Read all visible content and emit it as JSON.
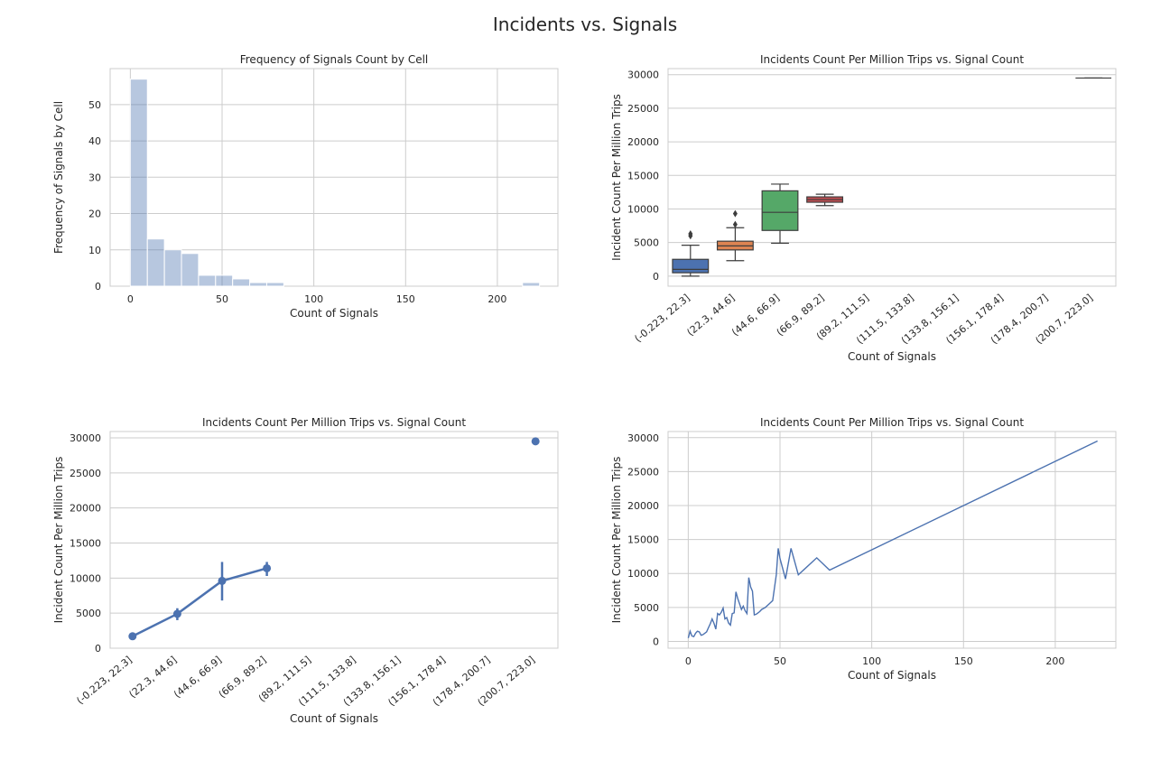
{
  "figure": {
    "title": "Incidents vs. Signals"
  },
  "chart_data": [
    {
      "type": "histogram",
      "title": "Frequency of Signals Count by Cell",
      "xlabel": "Count of Signals",
      "ylabel": "Frequency of Signals by Cell",
      "xlim": [
        -11,
        233
      ],
      "ylim": [
        0,
        59.9
      ],
      "xticks": [
        0,
        50,
        100,
        150,
        200
      ],
      "yticks": [
        0,
        10,
        20,
        30,
        40,
        50
      ],
      "bin_edges": [
        0,
        9.29,
        18.58,
        27.88,
        37.17,
        46.46,
        55.75,
        65.04,
        74.33,
        83.63,
        92.92,
        102.21,
        111.5,
        120.79,
        130.08,
        139.38,
        148.67,
        157.96,
        167.25,
        176.54,
        185.83,
        195.13,
        204.42,
        213.71,
        223
      ],
      "counts": [
        57,
        13,
        10,
        9,
        3,
        3,
        2,
        1,
        1,
        0,
        0,
        0,
        0,
        0,
        0,
        0,
        0,
        0,
        0,
        0,
        0,
        0,
        0,
        1
      ],
      "color": "#4c72b0"
    },
    {
      "type": "box",
      "title": "Incidents Count Per Million Trips vs. Signal Count",
      "xlabel": "Count of Signals",
      "ylabel": "Incident Count Per Million Trips",
      "categories": [
        "(-0.223, 22.3]",
        "(22.3, 44.6]",
        "(44.6, 66.9]",
        "(66.9, 89.2]",
        "(89.2, 111.5]",
        "(111.5, 133.8]",
        "(133.8, 156.1]",
        "(156.1, 178.4]",
        "(178.4, 200.7]",
        "(200.7, 223.0]"
      ],
      "ylim": [
        -1500,
        30900
      ],
      "yticks": [
        0,
        5000,
        10000,
        15000,
        20000,
        25000,
        30000
      ],
      "boxes": [
        {
          "category": "(-0.223, 22.3]",
          "whisker_low": 0,
          "q1": 500,
          "median": 1000,
          "q3": 2500,
          "whisker_high": 4600,
          "outliers": [
            6000,
            6300
          ],
          "color": "#4c72b0"
        },
        {
          "category": "(22.3, 44.6]",
          "whisker_low": 2300,
          "q1": 3900,
          "median": 4500,
          "q3": 5200,
          "whisker_high": 7200,
          "outliers": [
            7700,
            9300
          ],
          "color": "#dd8452"
        },
        {
          "category": "(44.6, 66.9]",
          "whisker_low": 4900,
          "q1": 6800,
          "median": 9500,
          "q3": 12700,
          "whisker_high": 13700,
          "outliers": [],
          "color": "#55a868"
        },
        {
          "category": "(66.9, 89.2]",
          "whisker_low": 10500,
          "q1": 11000,
          "median": 11400,
          "q3": 11800,
          "whisker_high": 12200,
          "outliers": [],
          "color": "#c44e52"
        },
        {
          "category": "(200.7, 223.0]",
          "whisker_low": 29500,
          "q1": 29500,
          "median": 29500,
          "q3": 29500,
          "whisker_high": 29500,
          "outliers": [],
          "color": "#8c8c8c"
        }
      ]
    },
    {
      "type": "point",
      "title": "Incidents Count Per Million Trips vs. Signal Count",
      "xlabel": "Count of Signals",
      "ylabel": "Incident Count Per Million Trips",
      "categories": [
        "(-0.223, 22.3]",
        "(22.3, 44.6]",
        "(44.6, 66.9]",
        "(66.9, 89.2]",
        "(89.2, 111.5]",
        "(111.5, 133.8]",
        "(133.8, 156.1]",
        "(156.1, 178.4]",
        "(178.4, 200.7]",
        "(200.7, 223.0]"
      ],
      "ylim": [
        0,
        30900
      ],
      "yticks": [
        0,
        5000,
        10000,
        15000,
        20000,
        25000,
        30000
      ],
      "points": [
        {
          "category": "(-0.223, 22.3]",
          "value": 1700,
          "ci": [
            1500,
            1900
          ]
        },
        {
          "category": "(22.3, 44.6]",
          "value": 4900,
          "ci": [
            4000,
            5700
          ]
        },
        {
          "category": "(44.6, 66.9]",
          "value": 9600,
          "ci": [
            6800,
            12300
          ]
        },
        {
          "category": "(66.9, 89.2]",
          "value": 11400,
          "ci": [
            10300,
            12300
          ]
        },
        {
          "category": "(200.7, 223.0]",
          "value": 29500,
          "ci": [
            29500,
            29500
          ]
        }
      ],
      "color": "#4c72b0"
    },
    {
      "type": "line",
      "title": "Incidents Count Per Million Trips vs. Signal Count",
      "xlabel": "Count of Signals",
      "ylabel": "Incident Count Per Million Trips",
      "xlim": [
        -11,
        233
      ],
      "ylim": [
        -1000,
        30900
      ],
      "xticks": [
        0,
        50,
        100,
        150,
        200
      ],
      "yticks": [
        0,
        5000,
        10000,
        15000,
        20000,
        25000,
        30000
      ],
      "x": [
        0,
        1,
        2,
        3,
        4,
        5,
        6,
        7,
        8,
        10,
        11,
        12,
        13,
        14,
        15,
        16,
        17,
        18,
        19,
        20,
        21,
        22,
        23,
        24,
        25,
        26,
        27,
        28,
        29,
        30,
        31,
        32,
        33,
        34,
        35,
        36,
        37,
        38,
        39,
        40,
        42,
        44,
        46,
        48,
        49,
        50,
        53,
        56,
        60,
        70,
        77,
        223
      ],
      "y": [
        500,
        1500,
        800,
        700,
        1200,
        1500,
        1400,
        900,
        1000,
        1400,
        2000,
        2600,
        3300,
        2700,
        1800,
        4100,
        3900,
        4300,
        4900,
        3300,
        3500,
        2700,
        2400,
        4100,
        4200,
        7300,
        6300,
        5500,
        4700,
        5200,
        4500,
        4100,
        9400,
        8000,
        7400,
        3900,
        4000,
        4200,
        4400,
        4700,
        5000,
        5500,
        6000,
        9800,
        13700,
        12200,
        9200,
        13700,
        9800,
        12300,
        10500,
        29500
      ],
      "color": "#4c72b0"
    }
  ]
}
